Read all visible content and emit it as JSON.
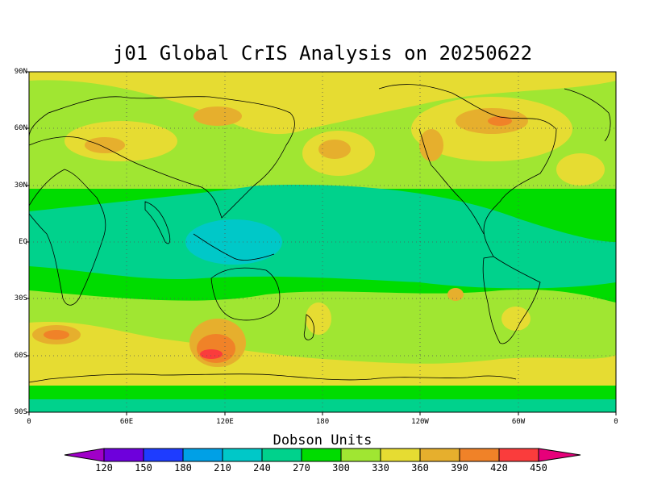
{
  "title": "j01 Global CrIS Analysis on 20250622",
  "map": {
    "lat_ticks": [
      "90N",
      "60N",
      "30N",
      "EQ",
      "30S",
      "60S",
      "90S"
    ],
    "lon_ticks": [
      "0",
      "60E",
      "120E",
      "180",
      "120W",
      "60W",
      "0"
    ],
    "ocean_color": "#00c878",
    "grid_style": "dotted"
  },
  "colorbar": {
    "title": "Dobson Units",
    "ticks": [
      "120",
      "150",
      "180",
      "210",
      "240",
      "270",
      "300",
      "330",
      "360",
      "390",
      "420",
      "450"
    ],
    "colors": [
      "#a000c8",
      "#6e00dc",
      "#1e3cff",
      "#00a0e6",
      "#00c8c8",
      "#00d28c",
      "#00dc00",
      "#a0e632",
      "#e6dc32",
      "#e6af2d",
      "#f08228",
      "#fa3c3c",
      "#e6007a"
    ]
  }
}
